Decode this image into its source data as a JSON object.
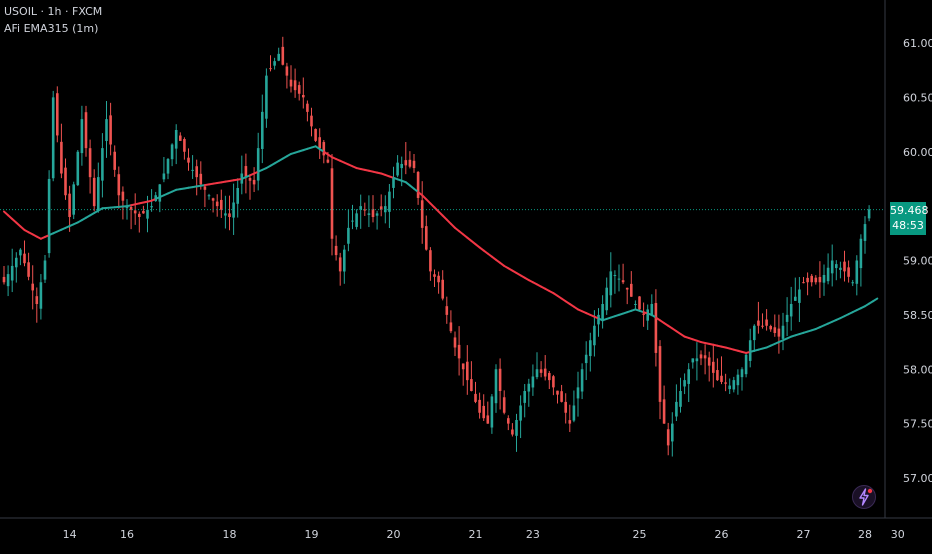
{
  "symbol_title": "USOIL · 1h · FXCM",
  "indicator_title": "AFi EMA315 (1m)",
  "current_price": "59.468",
  "countdown": "48:53",
  "colors": {
    "up": "#26a69a",
    "down": "#ef5350",
    "ema_above": "#26a69a",
    "ema_below": "#f23645",
    "price_line": "#089981",
    "axis_text": "#d1d4dc",
    "border": "#363a45"
  },
  "badge_icon": "lightning-icon",
  "chart_data": {
    "type": "candlestick",
    "title": "",
    "xlabel": "",
    "ylabel": "",
    "ylim": [
      56.8,
      61.3
    ],
    "grid": false,
    "y_ticks": [
      57.0,
      57.5,
      58.0,
      58.5,
      59.0,
      59.5,
      60.0,
      60.5,
      61.0
    ],
    "y_tick_labels": [
      "57.000",
      "57.500",
      "58.000",
      "58.500",
      "59.000",
      "59.468",
      "60.000",
      "60.500",
      "61.000"
    ],
    "x_ticks": [
      {
        "label": "14",
        "bar": 16
      },
      {
        "label": "16",
        "bar": 30
      },
      {
        "label": "18",
        "bar": 55
      },
      {
        "label": "19",
        "bar": 75
      },
      {
        "label": "20",
        "bar": 95
      },
      {
        "label": "21",
        "bar": 115
      },
      {
        "label": "23",
        "bar": 129
      },
      {
        "label": "25",
        "bar": 155
      },
      {
        "label": "26",
        "bar": 175
      },
      {
        "label": "27",
        "bar": 195
      },
      {
        "label": "28",
        "bar": 210
      },
      {
        "label": "30",
        "bar": 218
      }
    ],
    "close_points": [
      [
        0,
        58.8
      ],
      [
        4,
        59.1
      ],
      [
        8,
        58.6
      ],
      [
        10,
        59.0
      ],
      [
        12,
        60.5
      ],
      [
        14,
        59.8
      ],
      [
        16,
        59.4
      ],
      [
        19,
        60.3
      ],
      [
        22,
        59.5
      ],
      [
        25,
        60.3
      ],
      [
        28,
        59.6
      ],
      [
        30,
        59.5
      ],
      [
        33,
        59.4
      ],
      [
        36,
        59.5
      ],
      [
        39,
        59.8
      ],
      [
        42,
        60.2
      ],
      [
        45,
        59.9
      ],
      [
        48,
        59.7
      ],
      [
        52,
        59.5
      ],
      [
        55,
        59.4
      ],
      [
        58,
        59.8
      ],
      [
        61,
        59.7
      ],
      [
        64,
        60.7
      ],
      [
        67,
        60.9
      ],
      [
        70,
        60.6
      ],
      [
        73,
        60.5
      ],
      [
        76,
        60.1
      ],
      [
        79,
        59.9
      ],
      [
        80,
        59.2
      ],
      [
        82,
        58.9
      ],
      [
        84,
        59.3
      ],
      [
        87,
        59.5
      ],
      [
        90,
        59.4
      ],
      [
        93,
        59.5
      ],
      [
        96,
        59.9
      ],
      [
        100,
        59.85
      ],
      [
        102,
        59.3
      ],
      [
        104,
        58.9
      ],
      [
        106,
        58.8
      ],
      [
        108,
        58.5
      ],
      [
        110,
        58.2
      ],
      [
        113,
        57.9
      ],
      [
        116,
        57.6
      ],
      [
        118,
        57.5
      ],
      [
        120,
        58.0
      ],
      [
        122,
        57.6
      ],
      [
        124,
        57.4
      ],
      [
        127,
        57.8
      ],
      [
        130,
        58.0
      ],
      [
        133,
        57.9
      ],
      [
        136,
        57.7
      ],
      [
        138,
        57.5
      ],
      [
        141,
        58.0
      ],
      [
        144,
        58.4
      ],
      [
        146,
        58.6
      ],
      [
        148,
        58.9
      ],
      [
        151,
        58.8
      ],
      [
        154,
        58.6
      ],
      [
        156,
        58.5
      ],
      [
        158,
        58.6
      ],
      [
        160,
        57.7
      ],
      [
        162,
        57.3
      ],
      [
        164,
        57.7
      ],
      [
        166,
        57.9
      ],
      [
        168,
        58.1
      ],
      [
        171,
        58.1
      ],
      [
        174,
        57.9
      ],
      [
        177,
        57.85
      ],
      [
        180,
        58.0
      ],
      [
        183,
        58.4
      ],
      [
        186,
        58.4
      ],
      [
        189,
        58.3
      ],
      [
        192,
        58.6
      ],
      [
        195,
        58.8
      ],
      [
        199,
        58.8
      ],
      [
        202,
        59.0
      ],
      [
        205,
        58.9
      ],
      [
        207,
        58.8
      ],
      [
        209,
        59.2
      ],
      [
        211,
        59.47
      ]
    ],
    "ema_points": [
      [
        0,
        59.45
      ],
      [
        5,
        59.28
      ],
      [
        9,
        59.2
      ],
      [
        12,
        59.25
      ],
      [
        18,
        59.35
      ],
      [
        24,
        59.48
      ],
      [
        30,
        59.5
      ],
      [
        36,
        59.55
      ],
      [
        42,
        59.65
      ],
      [
        50,
        59.7
      ],
      [
        58,
        59.75
      ],
      [
        64,
        59.85
      ],
      [
        70,
        59.98
      ],
      [
        76,
        60.05
      ],
      [
        80,
        59.95
      ],
      [
        86,
        59.85
      ],
      [
        92,
        59.8
      ],
      [
        98,
        59.72
      ],
      [
        102,
        59.6
      ],
      [
        106,
        59.45
      ],
      [
        110,
        59.3
      ],
      [
        116,
        59.12
      ],
      [
        122,
        58.95
      ],
      [
        128,
        58.82
      ],
      [
        134,
        58.7
      ],
      [
        140,
        58.55
      ],
      [
        146,
        58.45
      ],
      [
        150,
        58.5
      ],
      [
        154,
        58.55
      ],
      [
        158,
        58.5
      ],
      [
        162,
        58.4
      ],
      [
        166,
        58.3
      ],
      [
        170,
        58.25
      ],
      [
        176,
        58.2
      ],
      [
        181,
        58.15
      ],
      [
        186,
        58.2
      ],
      [
        192,
        58.3
      ],
      [
        198,
        58.37
      ],
      [
        204,
        58.47
      ],
      [
        210,
        58.58
      ],
      [
        213,
        58.65
      ]
    ]
  }
}
